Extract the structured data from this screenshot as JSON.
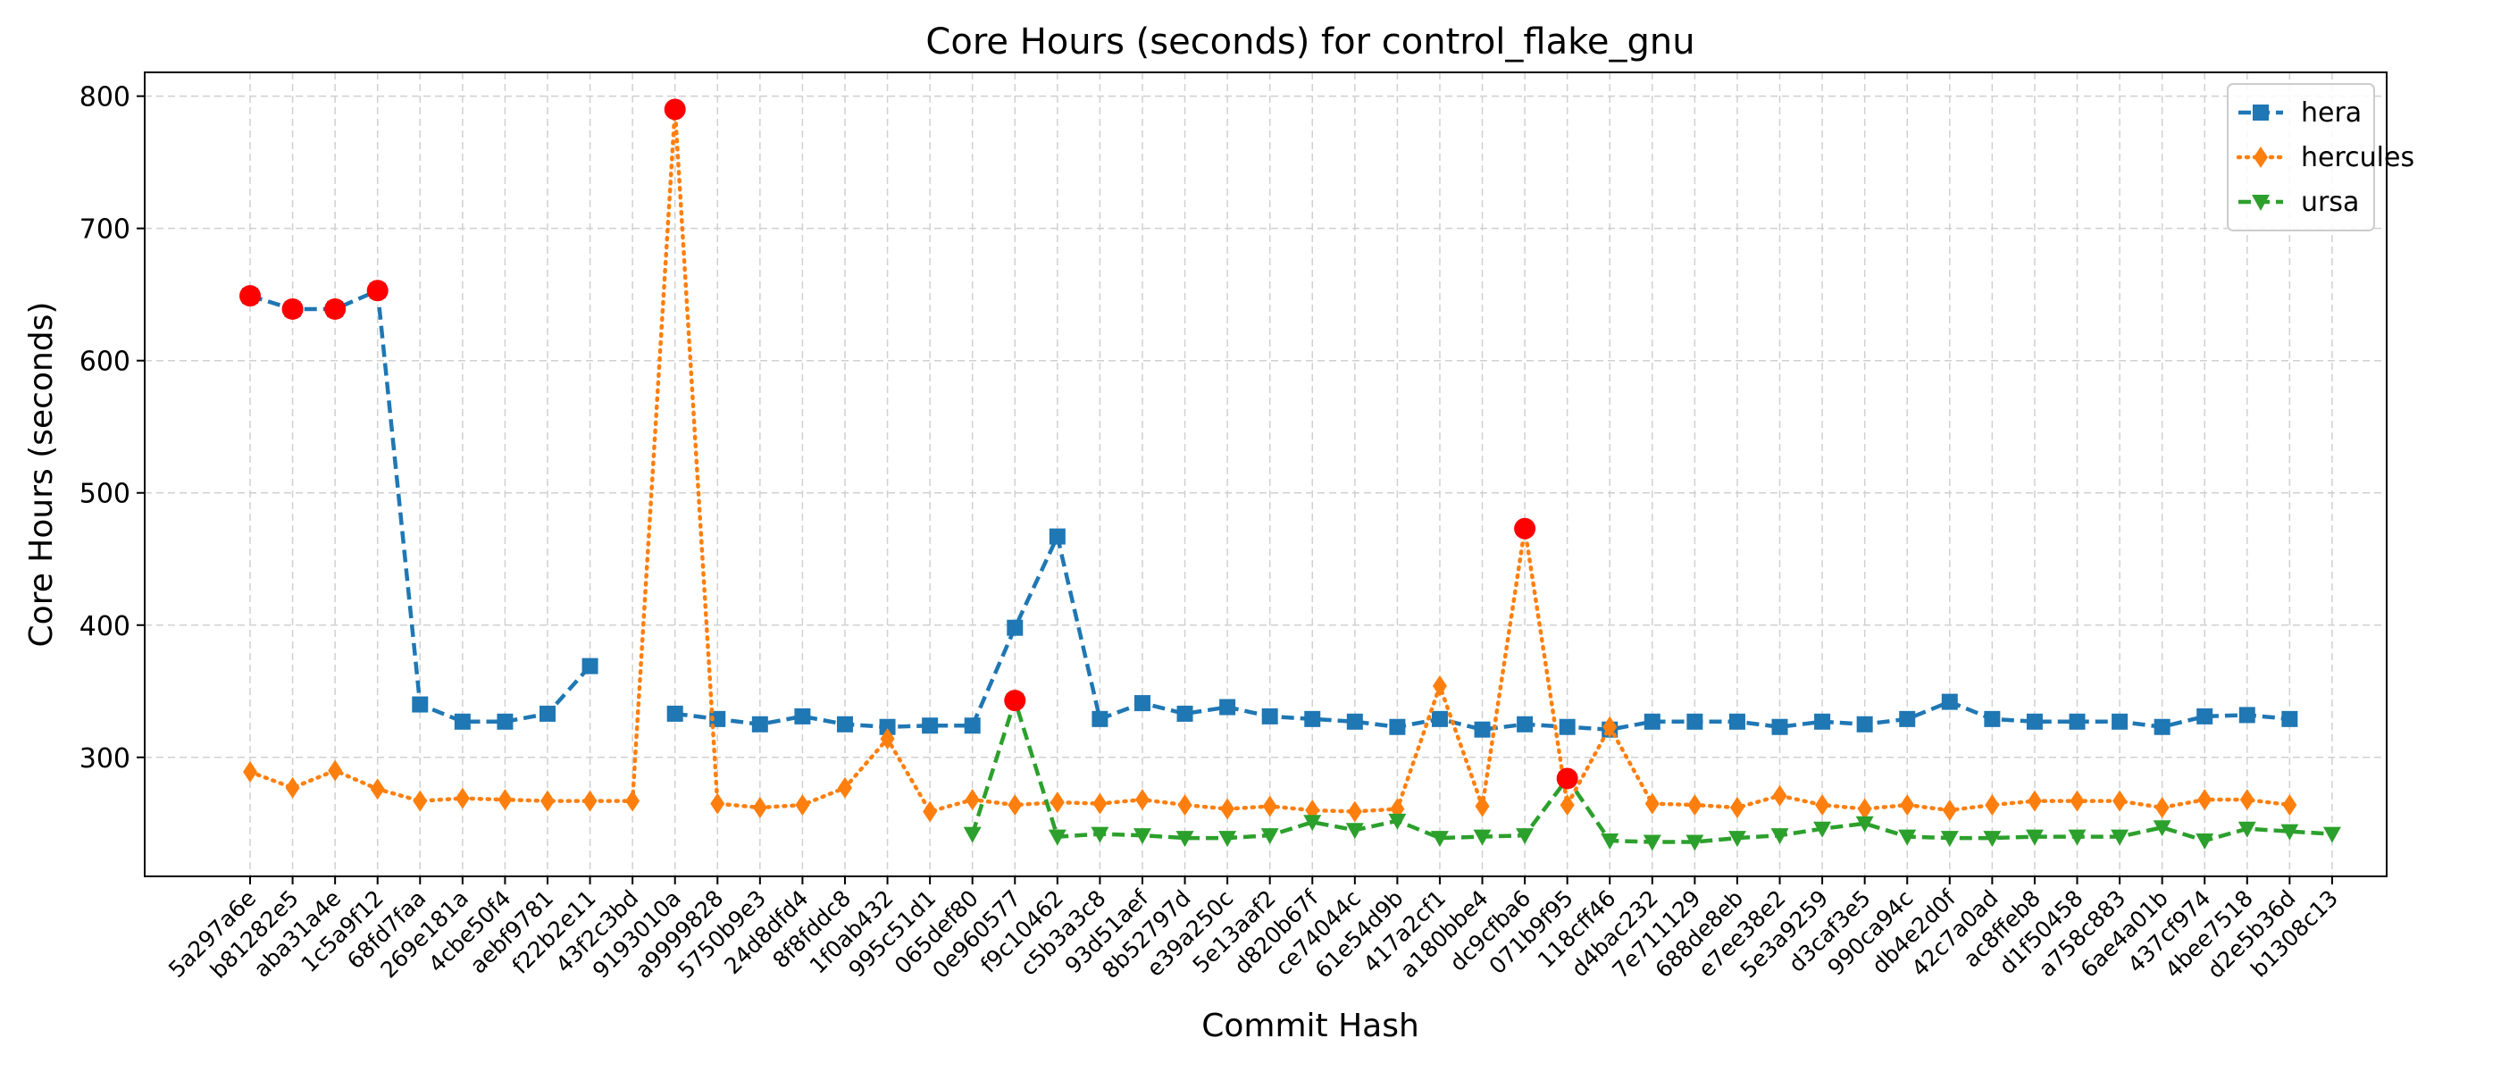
{
  "chart_data": {
    "type": "line",
    "title": "Core Hours (seconds) for control_flake_gnu",
    "xlabel": "Commit Hash",
    "ylabel": "Core Hours (seconds)",
    "ylim": [
      210,
      818
    ],
    "yticks": [
      300,
      400,
      500,
      600,
      700,
      800
    ],
    "grid": true,
    "legend_position": "top-right",
    "categories": [
      "5a297a6e",
      "b81282e5",
      "aba31a4e",
      "1c5a9f12",
      "68fd7faa",
      "269e181a",
      "4cbe50f4",
      "aebf9781",
      "f22b2e11",
      "43f2c3bd",
      "9193010a",
      "a9999828",
      "5750b9e3",
      "24d8dfd4",
      "8f8fddc8",
      "1f0ab432",
      "995c51d1",
      "065def80",
      "0e960577",
      "f9c10462",
      "c5b3a3c8",
      "93d51aef",
      "8b52797d",
      "e39a250c",
      "5e13aaf2",
      "d820b67f",
      "ce74044c",
      "61e54d9b",
      "417a2cf1",
      "a180bbe4",
      "dc9cfba6",
      "071b9f95",
      "118cff46",
      "d4bac232",
      "7e711129",
      "688de8eb",
      "e7ee38e2",
      "5e3a9259",
      "d3caf3e5",
      "990ca94c",
      "db4e2d0f",
      "42c7a0ad",
      "ac8ffeb8",
      "d1f50458",
      "a758c883",
      "6ae4a01b",
      "437cf974",
      "4bee7518",
      "d2e5b36d",
      "b1308c13"
    ],
    "series": [
      {
        "name": "hera",
        "color": "#1f77b4",
        "marker": "square",
        "linestyle": "dashed",
        "values": [
          649,
          639,
          639,
          653,
          340,
          327,
          327,
          333,
          369,
          null,
          333,
          329,
          325,
          331,
          325,
          323,
          324,
          324,
          398,
          467,
          329,
          341,
          333,
          338,
          331,
          329,
          327,
          323,
          329,
          321,
          325,
          323,
          321,
          327,
          327,
          327,
          323,
          327,
          325,
          329,
          342,
          329,
          327,
          327,
          327,
          323,
          331,
          332,
          329,
          null
        ]
      },
      {
        "name": "hercules",
        "color": "#ff7f0e",
        "marker": "diamond",
        "linestyle": "dotted",
        "values": [
          289,
          277,
          290,
          276,
          267,
          269,
          268,
          267,
          267,
          267,
          790,
          265,
          262,
          264,
          277,
          314,
          259,
          268,
          264,
          266,
          265,
          268,
          264,
          261,
          263,
          260,
          259,
          261,
          354,
          263,
          473,
          264,
          323,
          265,
          264,
          262,
          271,
          264,
          261,
          264,
          260,
          264,
          267,
          267,
          267,
          262,
          268,
          268,
          264,
          null
        ]
      },
      {
        "name": "ursa",
        "color": "#2ca02c",
        "marker": "triangle-down",
        "linestyle": "dashed",
        "values": [
          null,
          null,
          null,
          null,
          null,
          null,
          null,
          null,
          null,
          null,
          null,
          null,
          null,
          null,
          null,
          null,
          null,
          242,
          343,
          240,
          242,
          241,
          239,
          239,
          241,
          251,
          245,
          252,
          239,
          240,
          241,
          284,
          237,
          236,
          236,
          239,
          241,
          246,
          250,
          240,
          239,
          239,
          240,
          240,
          240,
          247,
          237,
          246,
          244,
          242
        ]
      }
    ],
    "highlighted_points": [
      {
        "series": "hera",
        "category": "5a297a6e",
        "value": 649
      },
      {
        "series": "hera",
        "category": "b81282e5",
        "value": 639
      },
      {
        "series": "hera",
        "category": "aba31a4e",
        "value": 639
      },
      {
        "series": "hera",
        "category": "1c5a9f12",
        "value": 653
      },
      {
        "series": "hercules",
        "category": "9193010a",
        "value": 790
      },
      {
        "series": "ursa",
        "category": "0e960577",
        "value": 343
      },
      {
        "series": "hercules",
        "category": "dc9cfba6",
        "value": 473
      },
      {
        "series": "ursa",
        "category": "071b9f95",
        "value": 284
      }
    ],
    "highlight_color": "#ff0000"
  }
}
